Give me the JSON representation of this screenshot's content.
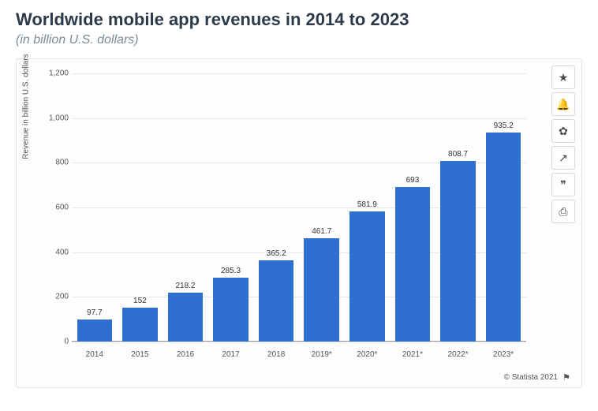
{
  "title": "Worldwide mobile app revenues in 2014 to 2023",
  "subtitle": "(in billion U.S. dollars)",
  "chart": {
    "type": "bar",
    "y_axis_title": "Revenue in billion U.S. dollars",
    "ylim": [
      0,
      1200
    ],
    "ytick_step": 200,
    "yticks": [
      0,
      200,
      400,
      600,
      800,
      1000,
      1200
    ],
    "bar_color": "#2f6fd1",
    "grid_color": "#e8e8e8",
    "background_color": "#fdfdfd",
    "axis_color": "#999999",
    "label_fontsize": 10,
    "value_fontsize": 10,
    "bar_width_pct": 86,
    "categories": [
      "2014",
      "2015",
      "2016",
      "2017",
      "2018",
      "2019*",
      "2020*",
      "2021*",
      "2022*",
      "2023*"
    ],
    "values": [
      97.7,
      152,
      218.2,
      285.3,
      365.2,
      461.7,
      581.9,
      693,
      808.7,
      935.2
    ]
  },
  "toolbar": {
    "buttons": [
      {
        "name": "favorite",
        "icon": "★"
      },
      {
        "name": "notify",
        "icon": "🔔"
      },
      {
        "name": "settings",
        "icon": "✿"
      },
      {
        "name": "share",
        "icon": "↗"
      },
      {
        "name": "quote",
        "icon": "❞"
      },
      {
        "name": "print",
        "icon": "⎙"
      }
    ]
  },
  "footer": {
    "credit": "© Statista 2021",
    "flag": "⚑"
  }
}
